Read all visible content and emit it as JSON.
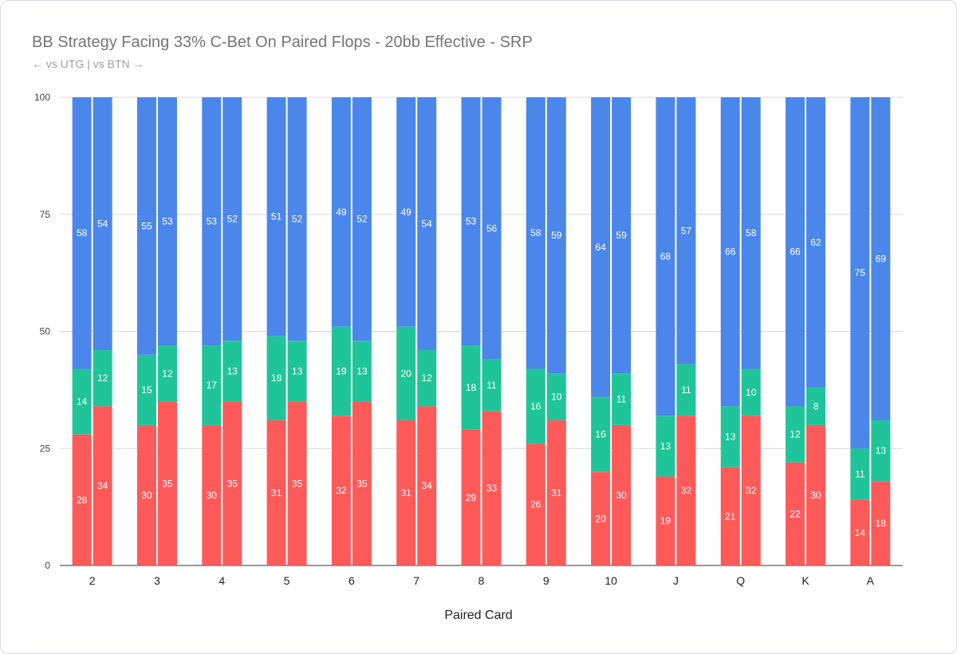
{
  "chart_data": {
    "type": "bar",
    "stacked": true,
    "title": "BB Strategy Facing 33% C-Bet On Paired Flops - 20bb Effective - SRP",
    "subtitle": "← vs UTG | vs BTN →",
    "xlabel": "Paired Card",
    "ylabel": "",
    "ylim": [
      0,
      100
    ],
    "yticks": [
      0,
      25,
      50,
      75,
      100
    ],
    "grid": true,
    "categories": [
      "2",
      "3",
      "4",
      "5",
      "6",
      "7",
      "8",
      "9",
      "10",
      "J",
      "Q",
      "K",
      "A"
    ],
    "groups": [
      "vs UTG",
      "vs BTN"
    ],
    "series": [
      {
        "color": "#ff5a5a",
        "values": {
          "vs UTG": [
            28,
            30,
            30,
            31,
            32,
            31,
            29,
            26,
            20,
            19,
            21,
            22,
            14
          ],
          "vs BTN": [
            34,
            35,
            35,
            35,
            35,
            34,
            33,
            31,
            30,
            32,
            32,
            30,
            18
          ]
        }
      },
      {
        "color": "#1fc598",
        "values": {
          "vs UTG": [
            14,
            15,
            17,
            18,
            19,
            20,
            18,
            16,
            16,
            13,
            13,
            12,
            11
          ],
          "vs BTN": [
            12,
            12,
            13,
            13,
            13,
            12,
            11,
            10,
            11,
            11,
            10,
            8,
            13
          ]
        }
      },
      {
        "color": "#4b87ea",
        "values": {
          "vs UTG": [
            58,
            55,
            53,
            51,
            49,
            49,
            53,
            58,
            64,
            68,
            66,
            66,
            75
          ],
          "vs BTN": [
            54,
            53,
            52,
            52,
            52,
            54,
            56,
            59,
            59,
            57,
            58,
            62,
            69
          ]
        }
      }
    ]
  }
}
